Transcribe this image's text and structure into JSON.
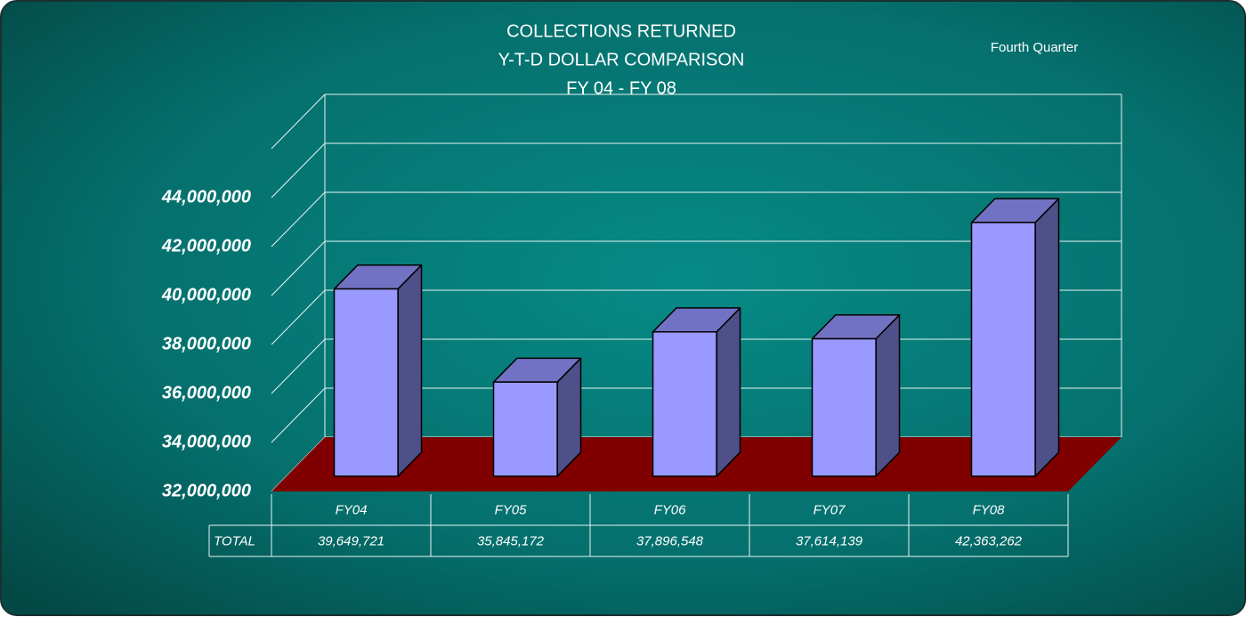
{
  "chart_data": {
    "type": "bar3d",
    "title": [
      "COLLECTIONS RETURNED",
      "Y-T-D DOLLAR COMPARISON",
      "FY 04 - FY 08"
    ],
    "subtitle": "Fourth  Quarter",
    "categories": [
      "FY04",
      "FY05",
      "FY06",
      "FY07",
      "FY08"
    ],
    "values": [
      39649721,
      35845172,
      37896548,
      37614139,
      42363262
    ],
    "value_labels": [
      "39,649,721",
      "35,845,172",
      "37,896,548",
      "37,614,139",
      "42,363,262"
    ],
    "table_row_label": "TOTAL",
    "color": "#9999ff",
    "floor_color": "#800000",
    "ylim": [
      32000000,
      46000000
    ],
    "yticks": [
      {
        "value": 32000000,
        "label": "32,000,000"
      },
      {
        "value": 34000000,
        "label": "34,000,000"
      },
      {
        "value": 36000000,
        "label": "36,000,000"
      },
      {
        "value": 38000000,
        "label": "38,000,000"
      },
      {
        "value": 40000000,
        "label": "40,000,000"
      },
      {
        "value": 42000000,
        "label": "42,000,000"
      },
      {
        "value": 44000000,
        "label": "44,000,000"
      }
    ],
    "grid": true
  }
}
